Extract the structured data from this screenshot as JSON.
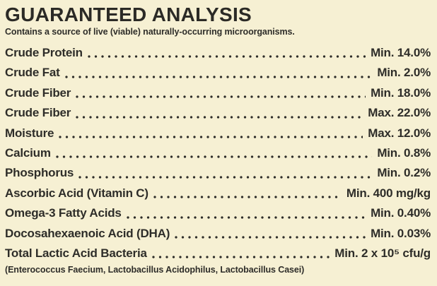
{
  "page": {
    "background_color": "#f6f0d3",
    "ink_color": "#2e2d29"
  },
  "header": {
    "title": "GUARANTEED ANALYSIS",
    "subtitle": "Contains a source of live (viable) naturally-occurring microorganisms."
  },
  "analysis": {
    "rows": [
      {
        "label": "Crude Protein",
        "value": "Min. 14.0%"
      },
      {
        "label": "Crude Fat",
        "value": "Min. 2.0%"
      },
      {
        "label": "Crude Fiber",
        "value": "Min. 18.0%"
      },
      {
        "label": "Crude Fiber",
        "value": "Max. 22.0%"
      },
      {
        "label": "Moisture",
        "value": "Max. 12.0%"
      },
      {
        "label": "Calcium",
        "value": "Min. 0.8%"
      },
      {
        "label": "Phosphorus",
        "value": "Min. 0.2%"
      },
      {
        "label": "Ascorbic Acid (Vitamin C)",
        "value": "Min. 400 mg/kg"
      },
      {
        "label": "Omega-3 Fatty Acids",
        "value": "Min. 0.40%"
      },
      {
        "label": "Docosahexaenoic Acid (DHA)",
        "value": "Min. 0.03%"
      },
      {
        "label": "Total Lactic Acid Bacteria",
        "value": "Min. 2 x 10⁵ cfu/g"
      }
    ],
    "footnote": "(Enterococcus Faecium, Lactobacillus Acidophilus, Lactobacillus Casei)"
  }
}
